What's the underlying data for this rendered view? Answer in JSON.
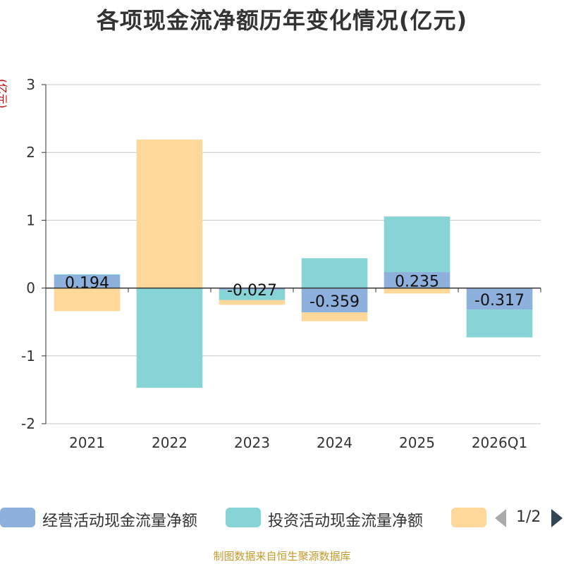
{
  "title": "各项现金流净额历年变化情况(亿元)",
  "source": "制图数据来自恒生聚源数据库",
  "legend_pager": "1/2",
  "chart_data": {
    "type": "bar",
    "stacked": true,
    "y_unit": "(亿元)",
    "categories": [
      "2021",
      "2022",
      "2023",
      "2024",
      "2025",
      "2026Q1"
    ],
    "ylim": [
      -2,
      3
    ],
    "yticks": [
      -2,
      -1,
      0,
      1,
      2,
      3
    ],
    "ytick_labels": [
      "-2",
      "-1",
      "0",
      "1",
      "2",
      "3"
    ],
    "grid": true,
    "legend_position": "bottom",
    "series": [
      {
        "name": "经营活动现金流量净额",
        "color": "#8eb0dc",
        "values": [
          0.194,
          0.0,
          -0.027,
          -0.359,
          0.235,
          -0.317
        ],
        "labels": [
          "0.194",
          "",
          "-0.027",
          "-0.359",
          "0.235",
          "-0.317"
        ]
      },
      {
        "name": "投资活动现金流量净额",
        "color": "#86d4d6",
        "values": [
          0.01,
          -1.47,
          -0.15,
          0.44,
          0.82,
          -0.41
        ]
      },
      {
        "name": "",
        "color": "#fed89a",
        "values": [
          -0.34,
          2.19,
          -0.07,
          -0.13,
          -0.08,
          0.0
        ]
      }
    ]
  }
}
